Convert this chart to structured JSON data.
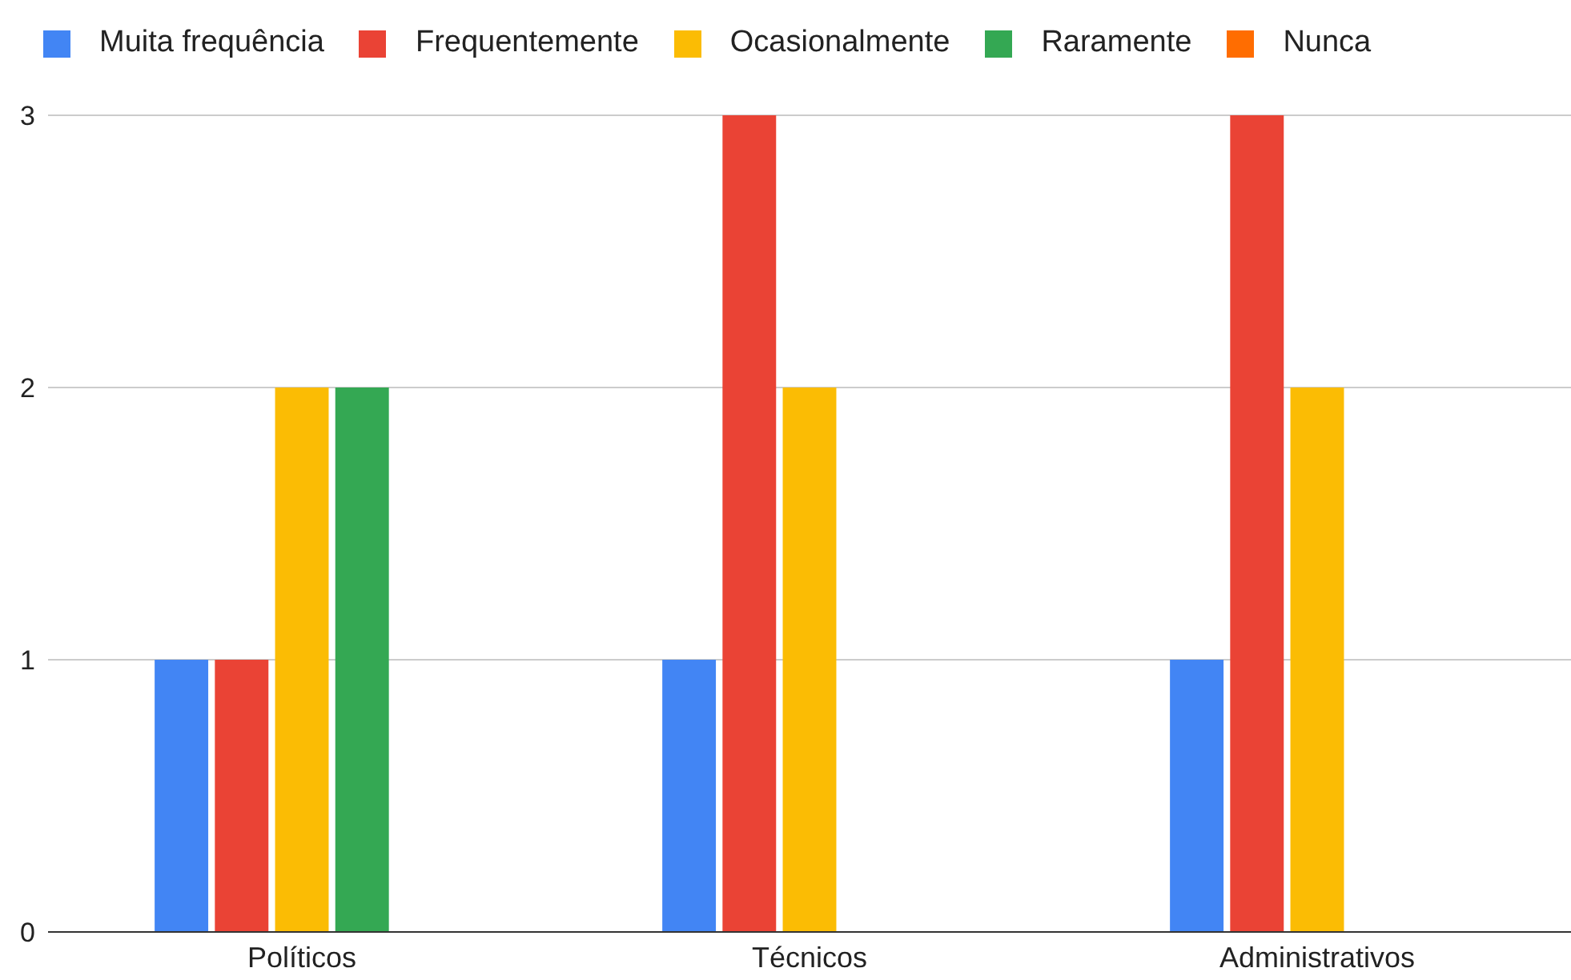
{
  "chart_data": {
    "type": "bar",
    "categories": [
      "Políticos",
      "Técnicos",
      "Administrativos"
    ],
    "series": [
      {
        "name": "Muita frequência",
        "color": "#4285f4",
        "values": [
          1,
          1,
          1
        ]
      },
      {
        "name": "Frequentemente",
        "color": "#ea4335",
        "values": [
          1,
          3,
          3
        ]
      },
      {
        "name": "Ocasionalmente",
        "color": "#fbbc04",
        "values": [
          2,
          2,
          2
        ]
      },
      {
        "name": "Raramente",
        "color": "#34a853",
        "values": [
          2,
          0,
          0
        ]
      },
      {
        "name": "Nunca",
        "color": "#ff6d01",
        "values": [
          0,
          0,
          0
        ]
      }
    ],
    "ylim": [
      0,
      3
    ],
    "yticks": [
      0,
      1,
      2,
      3
    ],
    "grid": "y",
    "legend": "top left"
  }
}
